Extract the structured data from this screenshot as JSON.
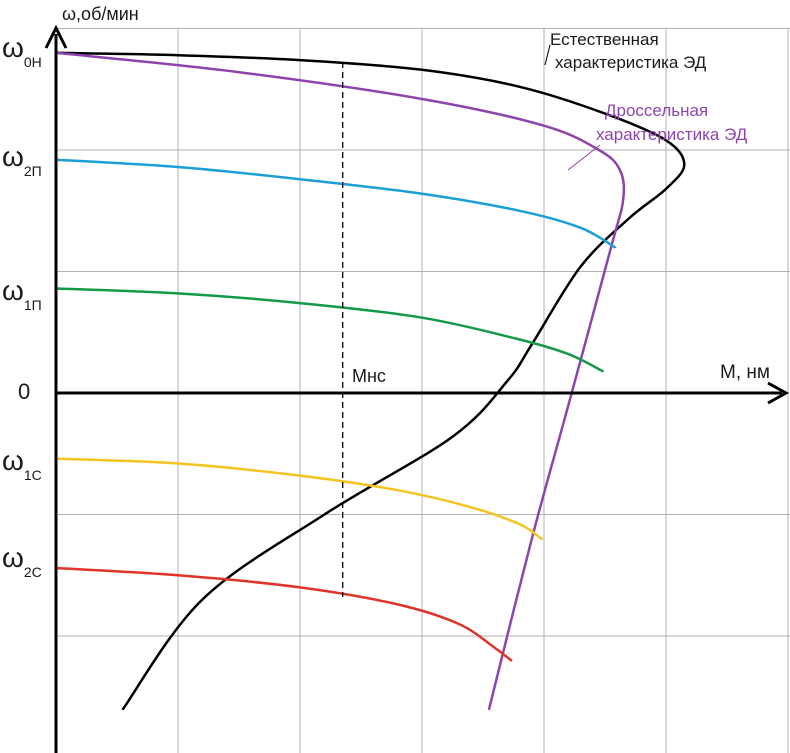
{
  "chart_data": {
    "type": "line",
    "title": "",
    "xlabel": "М, нм",
    "ylabel": "ω,об/мин",
    "grid": true,
    "y_ticks": [
      {
        "main": "ω",
        "sub": "0Н",
        "value": 1.4
      },
      {
        "main": "ω",
        "sub": "2П",
        "value": 0.95
      },
      {
        "main": "ω",
        "sub": "1П",
        "value": 0.4
      },
      {
        "main": "0",
        "sub": "",
        "value": 0
      },
      {
        "main": "ω",
        "sub": "1С",
        "value": -0.3
      },
      {
        "main": "ω",
        "sub": "2С",
        "value": -0.7
      }
    ],
    "marker": {
      "label": "Мнс",
      "x": 2.35
    },
    "series": [
      {
        "name": "Естественная характеристика ЭД",
        "color": "#000000",
        "points": [
          [
            0,
            1.4
          ],
          [
            1.0,
            1.39
          ],
          [
            2.0,
            1.37
          ],
          [
            3.0,
            1.33
          ],
          [
            3.8,
            1.26
          ],
          [
            4.5,
            1.15
          ],
          [
            5.0,
            1.04
          ],
          [
            5.15,
            0.94
          ],
          [
            5.0,
            0.84
          ],
          [
            4.7,
            0.72
          ],
          [
            4.3,
            0.52
          ],
          [
            3.9,
            0.2
          ],
          [
            3.7,
            0.05
          ],
          [
            3.25,
            -0.18
          ],
          [
            2.2,
            -0.5
          ],
          [
            1.2,
            -0.85
          ],
          [
            0.55,
            -1.3
          ]
        ]
      },
      {
        "name": "Дроссельная характеристика ЭД",
        "color": "#8e44ad",
        "points": [
          [
            0,
            1.4
          ],
          [
            1.5,
            1.32
          ],
          [
            3.0,
            1.21
          ],
          [
            4.0,
            1.1
          ],
          [
            4.45,
            1.0
          ],
          [
            4.62,
            0.92
          ],
          [
            4.65,
            0.8
          ],
          [
            4.55,
            0.6
          ],
          [
            4.2,
            -0.05
          ],
          [
            3.9,
            -0.6
          ],
          [
            3.55,
            -1.3
          ]
        ]
      },
      {
        "name": "",
        "color": "#1b9fd6",
        "points": [
          [
            0,
            0.96
          ],
          [
            1.0,
            0.93
          ],
          [
            2.0,
            0.88
          ],
          [
            3.0,
            0.82
          ],
          [
            3.8,
            0.75
          ],
          [
            4.3,
            0.68
          ],
          [
            4.58,
            0.6
          ]
        ]
      },
      {
        "name": "",
        "color": "#139a48",
        "points": [
          [
            0,
            0.43
          ],
          [
            1.0,
            0.41
          ],
          [
            2.0,
            0.37
          ],
          [
            3.0,
            0.31
          ],
          [
            3.8,
            0.22
          ],
          [
            4.2,
            0.16
          ],
          [
            4.48,
            0.09
          ]
        ]
      },
      {
        "name": "",
        "color": "#f5c41f",
        "points": [
          [
            0,
            -0.27
          ],
          [
            1.0,
            -0.29
          ],
          [
            2.0,
            -0.34
          ],
          [
            2.8,
            -0.4
          ],
          [
            3.4,
            -0.47
          ],
          [
            3.8,
            -0.54
          ],
          [
            3.98,
            -0.6
          ]
        ]
      },
      {
        "name": "",
        "color": "#e0332b",
        "points": [
          [
            0,
            -0.72
          ],
          [
            1.0,
            -0.75
          ],
          [
            2.0,
            -0.8
          ],
          [
            2.8,
            -0.87
          ],
          [
            3.3,
            -0.95
          ],
          [
            3.6,
            -1.05
          ],
          [
            3.73,
            -1.1
          ]
        ]
      }
    ],
    "legend": [
      {
        "text": "Естественная",
        "color": "#1a1a1a"
      },
      {
        "text": "характеристика ЭД",
        "color": "#1a1a1a"
      },
      {
        "text": "Дроссельная",
        "color": "#8e44ad"
      },
      {
        "text": "характеристика ЭД",
        "color": "#8e44ad"
      }
    ]
  }
}
